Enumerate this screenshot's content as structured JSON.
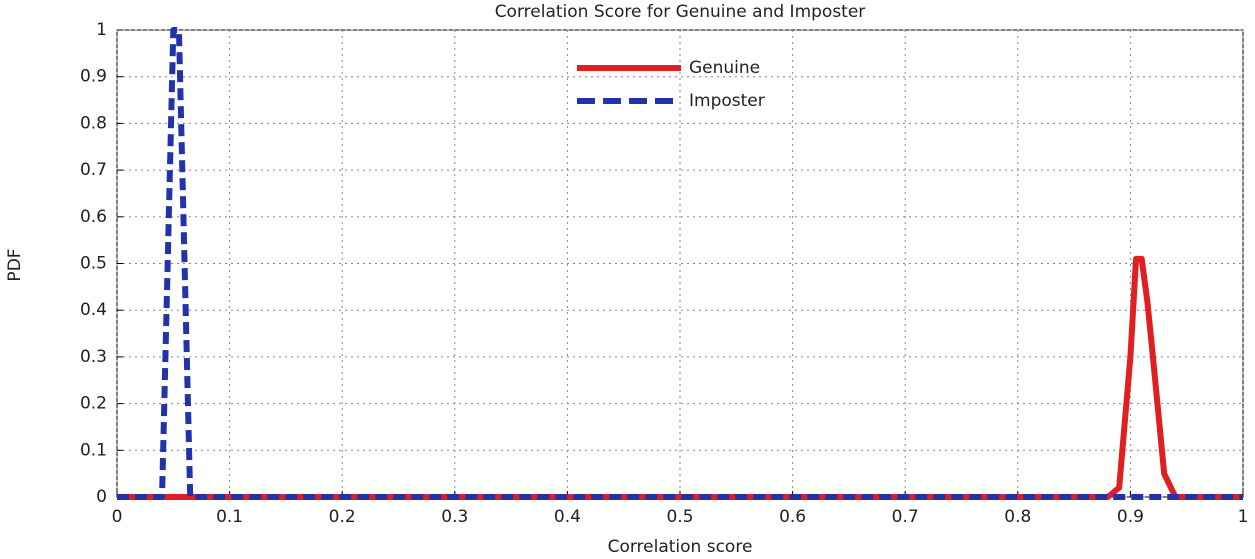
{
  "chart_data": {
    "type": "line",
    "title": "Correlation Score for Genuine and Imposter",
    "x_label": "Correlation score",
    "y_label": "PDF",
    "xlim": [
      0,
      1
    ],
    "ylim": [
      0,
      1
    ],
    "xticks": [
      0,
      0.1,
      0.2,
      0.3,
      0.4,
      0.5,
      0.6,
      0.7,
      0.8,
      0.9,
      1
    ],
    "yticks": [
      0,
      0.1,
      0.2,
      0.3,
      0.4,
      0.5,
      0.6,
      0.7,
      0.8,
      0.9,
      1
    ],
    "grid": true,
    "legend": "upper center",
    "series": [
      {
        "name": "Genuine",
        "color": "#e02020",
        "line_style": "solid",
        "x": [
          0,
          0.88,
          0.89,
          0.9,
          0.905,
          0.91,
          0.915,
          0.92,
          0.93,
          0.94,
          1
        ],
        "values": [
          0,
          0,
          0.02,
          0.3,
          0.51,
          0.51,
          0.42,
          0.3,
          0.05,
          0,
          0
        ]
      },
      {
        "name": "Imposter",
        "color": "#2233aa",
        "line_style": "dashed",
        "x": [
          0,
          0.04,
          0.045,
          0.05,
          0.055,
          0.06,
          0.065,
          1
        ],
        "values": [
          0,
          0,
          0.5,
          1,
          1,
          0.5,
          0,
          0
        ]
      }
    ]
  }
}
